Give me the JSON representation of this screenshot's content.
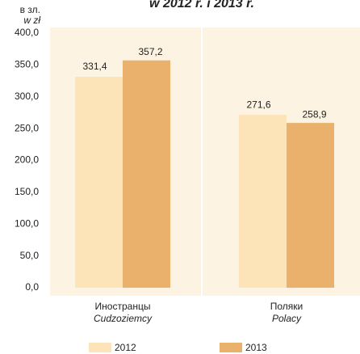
{
  "chart_data": {
    "type": "bar",
    "title": "w 2012 r. i 2013 r.",
    "y_label": "в зл.",
    "y_label_pl": "w zł",
    "categories": [
      [
        "Иностранцы",
        "Cudzoziemcy"
      ],
      [
        "Поляки",
        "Polacy"
      ]
    ],
    "series": [
      {
        "name": "2012",
        "color": "#fde3b8",
        "values": [
          331.4,
          271.6
        ],
        "value_labels": [
          "331,4",
          "271,6"
        ]
      },
      {
        "name": "2013",
        "color": "#e9b16b",
        "values": [
          357.2,
          258.9
        ],
        "value_labels": [
          "357,2",
          "258,9"
        ]
      }
    ],
    "ylim": [
      0,
      400
    ],
    "yticks": [
      {
        "value": 0,
        "label": "0,0"
      },
      {
        "value": 50,
        "label": "50,0"
      },
      {
        "value": 100,
        "label": "100,0"
      },
      {
        "value": 150,
        "label": "150,0"
      },
      {
        "value": 200,
        "label": "200,0"
      },
      {
        "value": 250,
        "label": "250,0"
      },
      {
        "value": 300,
        "label": "300,0"
      },
      {
        "value": 350,
        "label": "350,0"
      },
      {
        "value": 400,
        "label": "400,0"
      }
    ]
  }
}
